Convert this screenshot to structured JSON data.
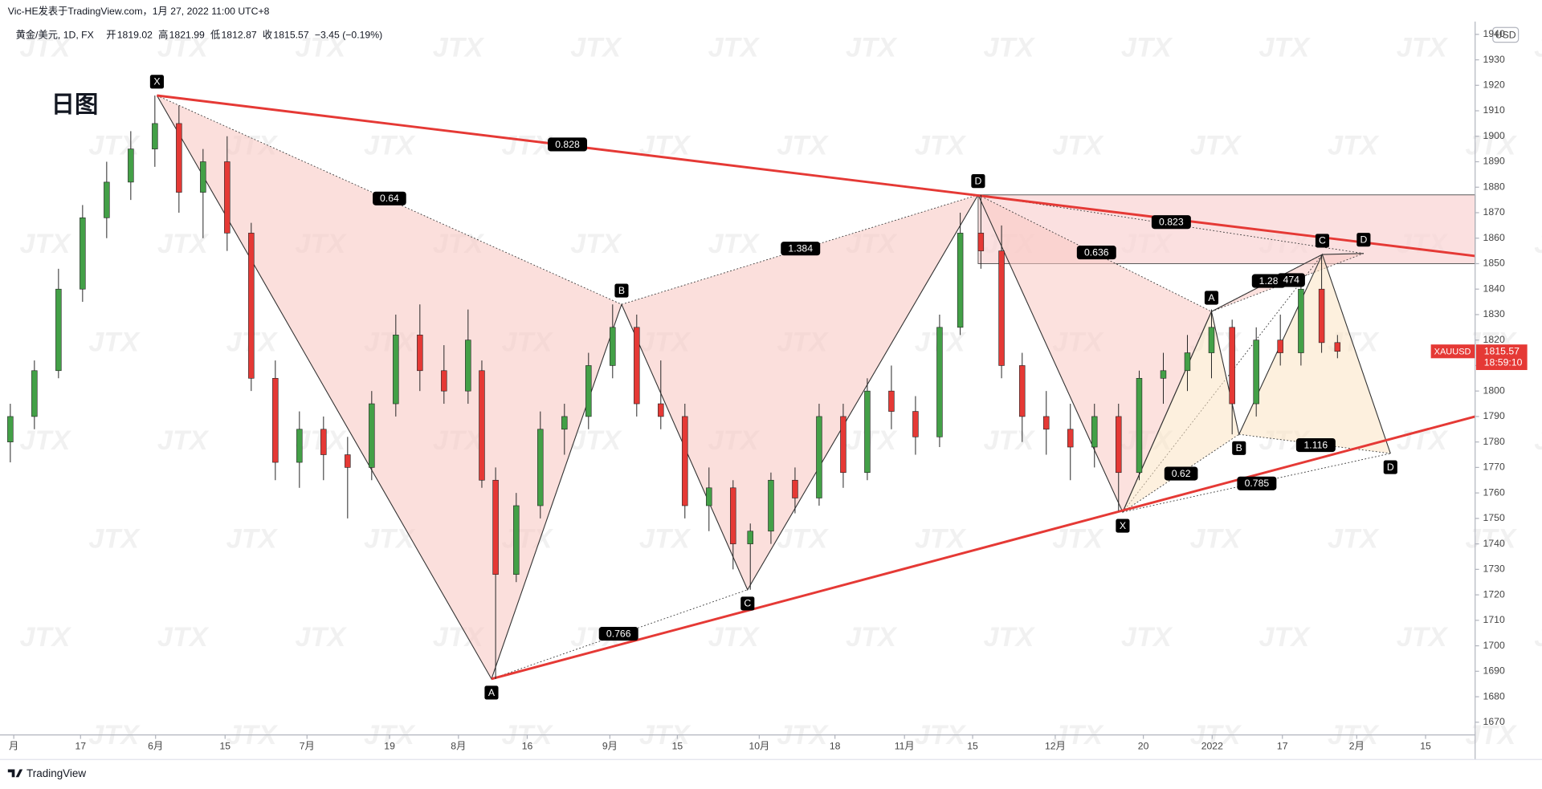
{
  "chart_data": {
    "type": "candlestick",
    "title": "日图",
    "published": "Vic-HE发表于TradingView.com，1月 27, 2022 11:00 UTC+8",
    "symbol": "黄金/美元, 1D, FX",
    "ohlc_labels": [
      "开",
      "高",
      "低",
      "收"
    ],
    "change": "−3.45 (−0.19%)",
    "symbol_code": "XAUUSD",
    "countdown": "18:59:10",
    "currency": "USD",
    "branding": "TradingView",
    "watermark": "JTX",
    "up_color": "#43a047",
    "down_color": "#e53935",
    "x": [
      1.5,
      5,
      8.5,
      12,
      15.5,
      19,
      22.5,
      26,
      29.5,
      33,
      36.5,
      40,
      43.5,
      47,
      50.5,
      54,
      57.5,
      61,
      64.5,
      68,
      70,
      72,
      75,
      78.5,
      82,
      85.5,
      89,
      92.5,
      96,
      99.5,
      103,
      106.5,
      109,
      112,
      115.5,
      119,
      122.5,
      126,
      129.5,
      133,
      136.5,
      139.5,
      142.5,
      145.5,
      148.5,
      152,
      155.5,
      159,
      162.5,
      165.5,
      169,
      172.5,
      176,
      179,
      182.5,
      186,
      189,
      192,
      194.3
    ],
    "open": [
      1780,
      1790,
      1808,
      1840,
      1868,
      1882,
      1895,
      1905,
      1878,
      1890,
      1862,
      1805,
      1772,
      1785,
      1775,
      1770,
      1795,
      1822,
      1808,
      1800,
      1808,
      1765,
      1728,
      1755,
      1785,
      1790,
      1810,
      1825,
      1795,
      1790,
      1755,
      1762,
      1740,
      1745,
      1765,
      1758,
      1790,
      1768,
      1800,
      1792,
      1782,
      1825,
      1862,
      1855,
      1810,
      1790,
      1785,
      1778,
      1790,
      1768,
      1805,
      1808,
      1815,
      1825,
      1795,
      1820,
      1815,
      1840,
      1819.02
    ],
    "high": [
      1795,
      1812,
      1848,
      1873,
      1890,
      1902,
      1916,
      1912,
      1895,
      1900,
      1866,
      1812,
      1792,
      1790,
      1782,
      1800,
      1830,
      1834,
      1818,
      1832,
      1812,
      1770,
      1760,
      1792,
      1795,
      1815,
      1834,
      1830,
      1812,
      1795,
      1770,
      1765,
      1748,
      1768,
      1770,
      1795,
      1795,
      1805,
      1810,
      1798,
      1830,
      1870,
      1877,
      1865,
      1815,
      1800,
      1795,
      1795,
      1795,
      1808,
      1815,
      1822,
      1832,
      1828,
      1825,
      1830,
      1845,
      1853,
      1821.99
    ],
    "low": [
      1772,
      1785,
      1805,
      1835,
      1860,
      1875,
      1888,
      1870,
      1860,
      1855,
      1800,
      1765,
      1762,
      1765,
      1750,
      1765,
      1790,
      1800,
      1795,
      1795,
      1762,
      1687,
      1725,
      1750,
      1775,
      1785,
      1805,
      1790,
      1785,
      1750,
      1745,
      1730,
      1722,
      1740,
      1752,
      1755,
      1762,
      1765,
      1785,
      1775,
      1778,
      1822,
      1848,
      1805,
      1780,
      1775,
      1765,
      1770,
      1753,
      1765,
      1795,
      1800,
      1805,
      1783,
      1790,
      1810,
      1810,
      1815,
      1812.87
    ],
    "close": [
      1790,
      1808,
      1840,
      1868,
      1882,
      1895,
      1905,
      1878,
      1890,
      1862,
      1805,
      1772,
      1785,
      1775,
      1770,
      1795,
      1822,
      1808,
      1800,
      1820,
      1765,
      1728,
      1755,
      1785,
      1790,
      1810,
      1825,
      1795,
      1790,
      1755,
      1762,
      1740,
      1745,
      1765,
      1758,
      1790,
      1768,
      1800,
      1792,
      1782,
      1825,
      1862,
      1855,
      1810,
      1790,
      1785,
      1778,
      1790,
      1768,
      1805,
      1808,
      1815,
      1825,
      1795,
      1820,
      1815,
      1840,
      1819,
      1815.57
    ],
    "xlim": [
      0,
      214.3
    ],
    "xticks": [
      {
        "value": 2,
        "label": "月"
      },
      {
        "value": 11.7,
        "label": "17"
      },
      {
        "value": 22.6,
        "label": "6月"
      },
      {
        "value": 32.7,
        "label": "15"
      },
      {
        "value": 44.6,
        "label": "7月"
      },
      {
        "value": 56.6,
        "label": "19"
      },
      {
        "value": 66.6,
        "label": "8月"
      },
      {
        "value": 76.6,
        "label": "16"
      },
      {
        "value": 88.6,
        "label": "9月"
      },
      {
        "value": 98.4,
        "label": "15"
      },
      {
        "value": 110.3,
        "label": "10月"
      },
      {
        "value": 121.3,
        "label": "18"
      },
      {
        "value": 131.4,
        "label": "11月"
      },
      {
        "value": 141.3,
        "label": "15"
      },
      {
        "value": 153.3,
        "label": "12月"
      },
      {
        "value": 166.1,
        "label": "20"
      },
      {
        "value": 176.1,
        "label": "2022"
      },
      {
        "value": 186.3,
        "label": "17"
      },
      {
        "value": 197.1,
        "label": "2月"
      },
      {
        "value": 207.1,
        "label": "15"
      }
    ],
    "ylim": [
      1665,
      1945
    ],
    "yticks": [
      1670,
      1680,
      1690,
      1700,
      1710,
      1720,
      1730,
      1740,
      1750,
      1760,
      1770,
      1780,
      1790,
      1800,
      1810,
      1820,
      1830,
      1840,
      1850,
      1860,
      1870,
      1880,
      1890,
      1900,
      1910,
      1920,
      1930,
      1940
    ],
    "trendlines": [
      {
        "color": "#e53935",
        "x": [
          22.8,
          214.3
        ],
        "y": [
          1916,
          1853
        ]
      },
      {
        "color": "#e53935",
        "x": [
          71.4,
          214.3
        ],
        "y": [
          1687,
          1790
        ]
      }
    ],
    "zone": {
      "x": 142.1,
      "y": [
        1850,
        1877
      ],
      "color": "#f9d3d3"
    },
    "patterns": [
      {
        "color": "#f8c4bf",
        "labels": [
          "X",
          "A",
          "B",
          "C",
          "D"
        ],
        "x": [
          22.8,
          71.4,
          90.3,
          108.6,
          142.1
        ],
        "y": [
          1916,
          1687,
          1834,
          1722,
          1877
        ]
      },
      {
        "color": "#f9c9c3",
        "labels": [
          null,
          null,
          null,
          null,
          "D"
        ],
        "x": [
          142.1,
          163.1,
          176,
          192.1,
          198.1
        ],
        "y": [
          1877,
          1752.5,
          1831.2,
          1853.6,
          1854
        ]
      },
      {
        "color": "#fbe3c2",
        "labels": [
          "X",
          "A",
          "B",
          "C",
          "D"
        ],
        "x": [
          163.1,
          176,
          180,
          192.1,
          202
        ],
        "y": [
          1752.5,
          1831.2,
          1783,
          1853.6,
          1775.5
        ]
      }
    ],
    "ratios": [
      "0.828",
      "0.64",
      "1.384",
      "0.766",
      "0.636",
      "0.823",
      "1.28",
      "474",
      "0.62",
      "0.785",
      "1.116"
    ]
  }
}
